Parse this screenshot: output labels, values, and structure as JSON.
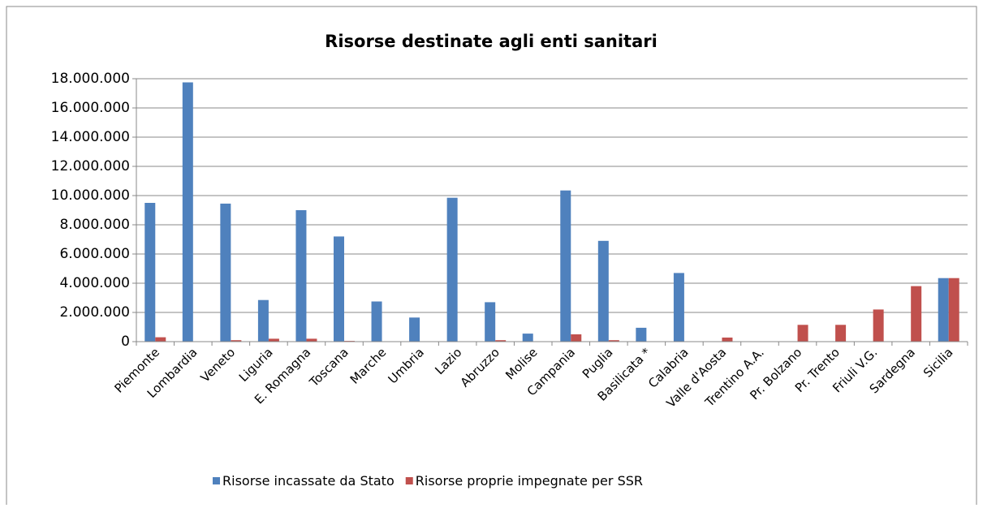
{
  "chart_data": {
    "type": "bar",
    "title": "Risorse destinate agli enti sanitari",
    "categories": [
      "Piemonte",
      "Lombardia",
      "Veneto",
      "Liguria",
      "E. Romagna",
      "Toscana",
      "Marche",
      "Umbria",
      "Lazio",
      "Abruzzo",
      "Molise",
      "Campania",
      "Puglia",
      "Basilicata *",
      "Calabria",
      "Valle d'Aosta",
      "Trentino A.A.",
      "Pr. Bolzano",
      "Pr. Trento",
      "Friuli V.G.",
      "Sardegna",
      "Sicilia"
    ],
    "series": [
      {
        "name": "Risorse incassate da Stato",
        "color": "#4f81bd",
        "values": [
          9500000,
          17750000,
          9450000,
          2850000,
          9000000,
          7200000,
          2750000,
          1650000,
          9850000,
          2700000,
          550000,
          10350000,
          6900000,
          950000,
          4700000,
          0,
          0,
          0,
          0,
          0,
          0,
          4350000
        ]
      },
      {
        "name": "Risorse proprie impegnate per SSR",
        "color": "#c0504d",
        "values": [
          300000,
          0,
          100000,
          200000,
          200000,
          50000,
          0,
          0,
          0,
          100000,
          0,
          500000,
          100000,
          0,
          0,
          280000,
          0,
          1150000,
          1150000,
          2200000,
          3800000,
          4350000
        ]
      }
    ],
    "ylim": [
      0,
      18000000
    ],
    "yticks": [
      0,
      {
        "value": 2000000,
        "label": "2.000.000"
      },
      {
        "value": 4000000,
        "label": "4.000.000"
      },
      {
        "value": 6000000,
        "label": "6.000.000"
      },
      {
        "value": 8000000,
        "label": "8.000.000"
      },
      {
        "value": 10000000,
        "label": "10.000.000"
      },
      {
        "value": 12000000,
        "label": "12.000.000"
      },
      {
        "value": 14000000,
        "label": "14.000.000"
      },
      {
        "value": 16000000,
        "label": "16.000.000"
      },
      {
        "value": 18000000,
        "label": "18.000.000"
      }
    ],
    "grid": true,
    "legend": "bottom"
  }
}
